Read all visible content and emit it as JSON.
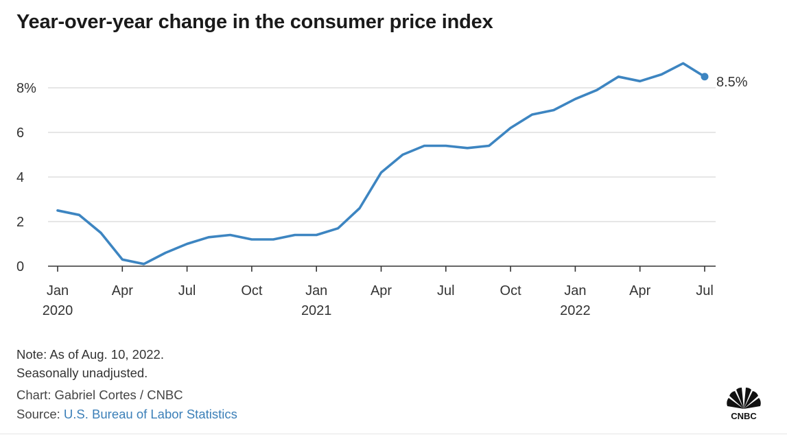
{
  "title": "Year-over-year change in the consumer price index",
  "colors": {
    "line": "#3d85c1",
    "grid": "#d6d6d6",
    "text": "#333333",
    "link": "#3b7fb8"
  },
  "chart_data": {
    "type": "line",
    "title": "Year-over-year change in the consumer price index",
    "xlabel": "",
    "ylabel": "",
    "ylim": [
      0,
      9.5
    ],
    "yticks": [
      {
        "value": 0,
        "label": "0"
      },
      {
        "value": 2,
        "label": "2"
      },
      {
        "value": 4,
        "label": "4"
      },
      {
        "value": 6,
        "label": "6"
      },
      {
        "value": 8,
        "label": "8%"
      }
    ],
    "xticks": [
      {
        "index": 0,
        "label": "Jan",
        "year": "2020"
      },
      {
        "index": 3,
        "label": "Apr",
        "year": ""
      },
      {
        "index": 6,
        "label": "Jul",
        "year": ""
      },
      {
        "index": 9,
        "label": "Oct",
        "year": ""
      },
      {
        "index": 12,
        "label": "Jan",
        "year": "2021"
      },
      {
        "index": 15,
        "label": "Apr",
        "year": ""
      },
      {
        "index": 18,
        "label": "Jul",
        "year": ""
      },
      {
        "index": 21,
        "label": "Oct",
        "year": ""
      },
      {
        "index": 24,
        "label": "Jan",
        "year": "2022"
      },
      {
        "index": 27,
        "label": "Apr",
        "year": ""
      },
      {
        "index": 30,
        "label": "Jul",
        "year": ""
      }
    ],
    "grid": true,
    "series": [
      {
        "name": "CPI year-over-year change (%)",
        "x": [
          "2020-01",
          "2020-02",
          "2020-03",
          "2020-04",
          "2020-05",
          "2020-06",
          "2020-07",
          "2020-08",
          "2020-09",
          "2020-10",
          "2020-11",
          "2020-12",
          "2021-01",
          "2021-02",
          "2021-03",
          "2021-04",
          "2021-05",
          "2021-06",
          "2021-07",
          "2021-08",
          "2021-09",
          "2021-10",
          "2021-11",
          "2021-12",
          "2022-01",
          "2022-02",
          "2022-03",
          "2022-04",
          "2022-05",
          "2022-06",
          "2022-07"
        ],
        "values": [
          2.5,
          2.3,
          1.5,
          0.3,
          0.1,
          0.6,
          1.0,
          1.3,
          1.4,
          1.2,
          1.2,
          1.4,
          1.4,
          1.7,
          2.6,
          4.2,
          5.0,
          5.4,
          5.4,
          5.3,
          5.4,
          6.2,
          6.8,
          7.0,
          7.5,
          7.9,
          8.5,
          8.3,
          8.6,
          9.1,
          8.5
        ]
      }
    ],
    "end_label": "8.5%"
  },
  "footer": {
    "note_line1": "Note: As of Aug. 10, 2022.",
    "note_line2": "Seasonally unadjusted.",
    "credit": "Chart: Gabriel Cortes / CNBC",
    "source_prefix": "Source: ",
    "source_link": "U.S. Bureau of Labor Statistics"
  },
  "logo": {
    "name": "CNBC peacock logo",
    "text": "CNBC"
  }
}
